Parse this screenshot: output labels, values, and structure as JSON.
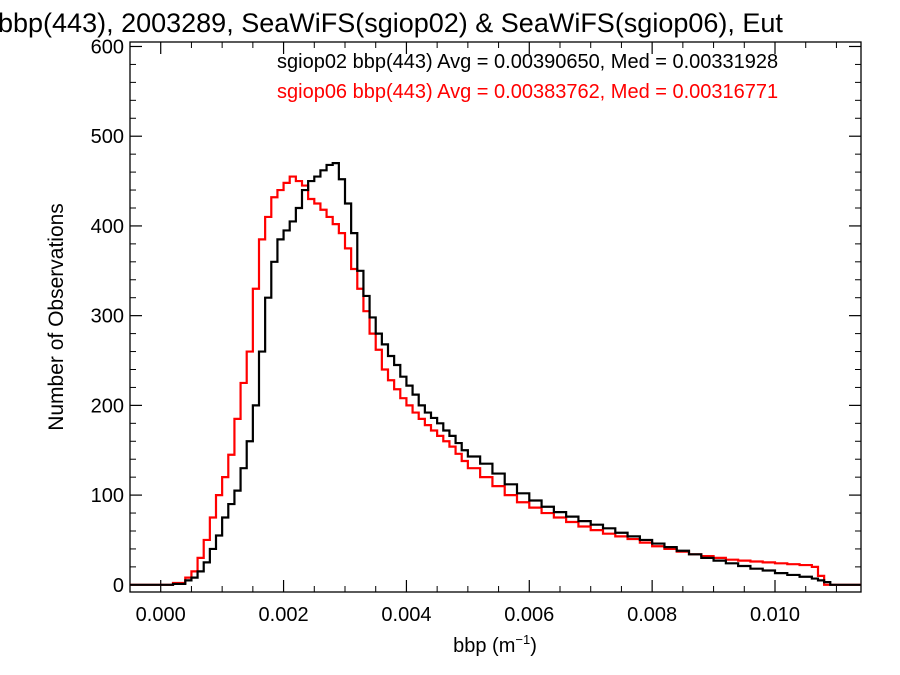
{
  "chart_data": {
    "type": "line",
    "style": "step-histogram",
    "title": "bbp(443), 2003289, SeaWiFS(sgiop02) & SeaWiFS(sgiop06), Eut",
    "xlabel": "bbp (m",
    "xlabel_sup": "−1",
    "xlabel_tail": ")",
    "ylabel": "Number of Observations",
    "xlim": [
      -0.0005,
      0.0114
    ],
    "ylim": [
      -8,
      605
    ],
    "x_ticks": [
      0.0,
      0.002,
      0.004,
      0.006,
      0.008,
      0.01
    ],
    "x_tick_labels": [
      "0.000",
      "0.002",
      "0.004",
      "0.006",
      "0.008",
      "0.010"
    ],
    "y_ticks": [
      0,
      100,
      200,
      300,
      400,
      500,
      600
    ],
    "y_tick_labels": [
      "0",
      "100",
      "200",
      "300",
      "400",
      "500",
      "600"
    ],
    "grid": false,
    "legend_position": "top-right",
    "annotations": [
      {
        "text": "sgiop02 bbp(443) Avg = 0.00390650, Med = 0.00331928",
        "color": "#000000"
      },
      {
        "text": "sgiop06 bbp(443) Avg = 0.00383762, Med = 0.00316771",
        "color": "#ff0000"
      }
    ],
    "series": [
      {
        "name": "sgiop02",
        "color": "#000000",
        "x": [
          -0.0005,
          0.0,
          0.0002,
          0.0004,
          0.0005,
          0.0006,
          0.0007,
          0.0008,
          0.0009,
          0.001,
          0.0011,
          0.0012,
          0.0013,
          0.0014,
          0.0015,
          0.0016,
          0.0017,
          0.0018,
          0.0019,
          0.002,
          0.0021,
          0.0022,
          0.0023,
          0.0024,
          0.0025,
          0.0026,
          0.0027,
          0.0028,
          0.0029,
          0.003,
          0.0031,
          0.0032,
          0.0033,
          0.0034,
          0.0035,
          0.0036,
          0.0037,
          0.0038,
          0.0039,
          0.004,
          0.0041,
          0.0042,
          0.0043,
          0.0044,
          0.0045,
          0.0046,
          0.0047,
          0.0048,
          0.0049,
          0.005,
          0.0052,
          0.0054,
          0.0056,
          0.0058,
          0.006,
          0.0062,
          0.0064,
          0.0066,
          0.0068,
          0.007,
          0.0072,
          0.0074,
          0.0076,
          0.0078,
          0.008,
          0.0082,
          0.0084,
          0.0086,
          0.0088,
          0.009,
          0.0092,
          0.0094,
          0.0096,
          0.0098,
          0.01,
          0.0102,
          0.0104,
          0.0106,
          0.0107,
          0.0108,
          0.0109,
          0.0114
        ],
        "values": [
          0,
          0,
          1,
          5,
          8,
          15,
          25,
          40,
          55,
          75,
          90,
          105,
          130,
          160,
          200,
          260,
          320,
          360,
          385,
          395,
          405,
          420,
          440,
          450,
          455,
          462,
          468,
          470,
          452,
          425,
          392,
          350,
          322,
          298,
          280,
          268,
          255,
          245,
          232,
          222,
          212,
          200,
          192,
          186,
          180,
          172,
          166,
          158,
          150,
          143,
          135,
          124,
          112,
          102,
          94,
          87,
          81,
          76,
          71,
          67,
          63,
          58,
          54,
          50,
          46,
          42,
          38,
          34,
          30,
          27,
          24,
          21,
          18,
          16,
          13,
          11,
          9,
          7,
          5,
          3,
          0,
          0
        ]
      },
      {
        "name": "sgiop06",
        "color": "#ff0000",
        "x": [
          -0.0005,
          0.0,
          0.0002,
          0.0004,
          0.0005,
          0.0006,
          0.0007,
          0.0008,
          0.0009,
          0.001,
          0.0011,
          0.0012,
          0.0013,
          0.0014,
          0.0015,
          0.0016,
          0.0017,
          0.0018,
          0.0019,
          0.002,
          0.0021,
          0.0022,
          0.0023,
          0.0024,
          0.0025,
          0.0026,
          0.0027,
          0.0028,
          0.0029,
          0.003,
          0.0031,
          0.0032,
          0.0033,
          0.0034,
          0.0035,
          0.0036,
          0.0037,
          0.0038,
          0.0039,
          0.004,
          0.0041,
          0.0042,
          0.0043,
          0.0044,
          0.0045,
          0.0046,
          0.0047,
          0.0048,
          0.0049,
          0.005,
          0.0052,
          0.0054,
          0.0056,
          0.0058,
          0.006,
          0.0062,
          0.0064,
          0.0066,
          0.0068,
          0.007,
          0.0072,
          0.0074,
          0.0076,
          0.0078,
          0.008,
          0.0082,
          0.0084,
          0.0086,
          0.0088,
          0.009,
          0.0092,
          0.0094,
          0.0096,
          0.0098,
          0.01,
          0.0102,
          0.0104,
          0.0106,
          0.0107,
          0.0108,
          0.0109,
          0.0114
        ],
        "values": [
          0,
          0,
          2,
          8,
          15,
          30,
          50,
          75,
          100,
          120,
          145,
          185,
          225,
          260,
          330,
          385,
          410,
          432,
          440,
          448,
          455,
          450,
          445,
          430,
          425,
          418,
          410,
          402,
          392,
          375,
          352,
          330,
          305,
          280,
          262,
          240,
          228,
          218,
          208,
          200,
          192,
          185,
          178,
          172,
          166,
          160,
          154,
          146,
          138,
          130,
          120,
          110,
          100,
          92,
          86,
          80,
          75,
          70,
          65,
          61,
          57,
          54,
          51,
          47,
          43,
          40,
          37,
          34,
          32,
          30,
          28,
          27,
          26,
          25,
          24,
          23,
          22,
          20,
          10,
          0,
          0,
          0
        ]
      }
    ]
  }
}
